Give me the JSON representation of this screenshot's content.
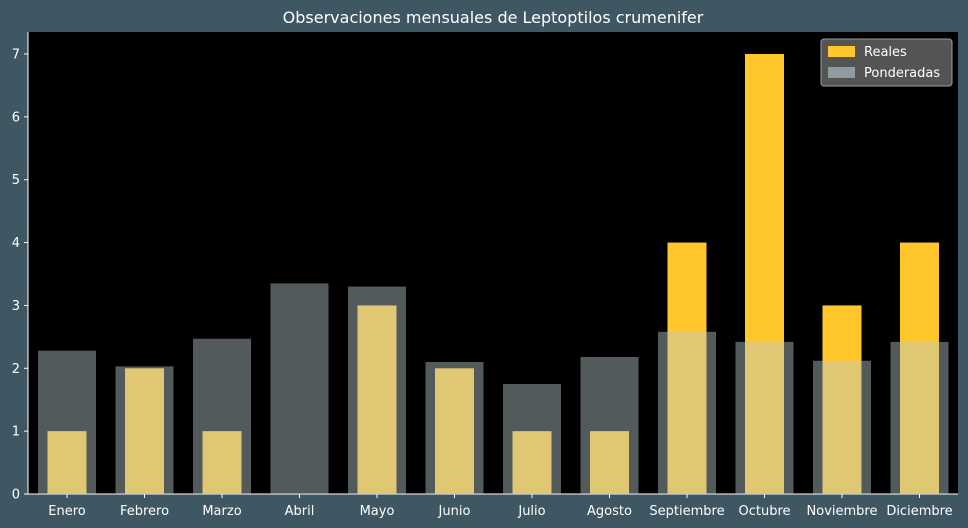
{
  "chart_data": {
    "type": "bar",
    "title": "Observaciones mensuales de Leptoptilos crumenifer",
    "xlabel": "",
    "ylabel": "",
    "categories": [
      "Enero",
      "Febrero",
      "Marzo",
      "Abril",
      "Mayo",
      "Junio",
      "Julio",
      "Agosto",
      "Septiembre",
      "Octubre",
      "Noviembre",
      "Diciembre"
    ],
    "series": [
      {
        "name": "Reales",
        "color": "#ffc72c",
        "values": [
          1,
          2,
          1,
          0,
          3,
          2,
          1,
          1,
          4,
          7,
          3,
          4
        ]
      },
      {
        "name": "Ponderadas",
        "color": "#b9c8cc",
        "opacity": 0.45,
        "values": [
          2.28,
          2.03,
          2.47,
          3.35,
          3.3,
          2.1,
          1.75,
          2.18,
          2.58,
          2.42,
          2.12,
          2.42
        ]
      }
    ],
    "ylim": [
      0,
      7.35
    ],
    "yticks": [
      0,
      1,
      2,
      3,
      4,
      5,
      6,
      7
    ],
    "grid": false,
    "legend_position": "top-right",
    "colors": {
      "background": "#3f5663",
      "plot_background": "#000000",
      "text": "#ffffff"
    }
  }
}
